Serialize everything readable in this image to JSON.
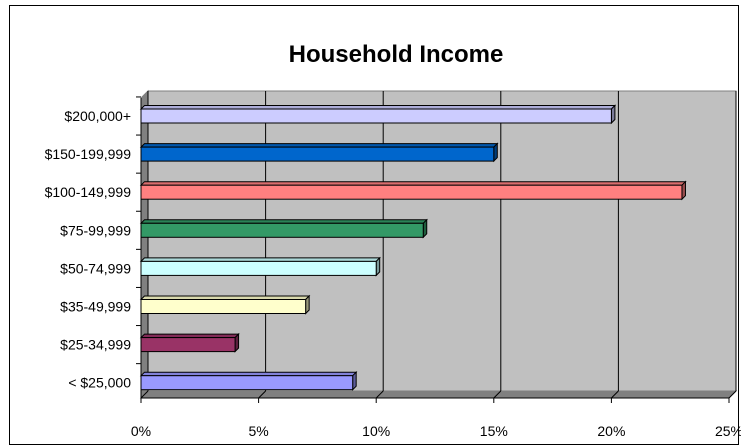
{
  "chart_data": {
    "type": "bar",
    "orientation": "horizontal",
    "title": "Household Income",
    "categories": [
      "$200,000+",
      "$150-199,999",
      "$100-149,999",
      "$75-99,999",
      "$50-74,999",
      "$35-49,999",
      "$25-34,999",
      "< $25,000"
    ],
    "values": [
      20,
      15,
      23,
      12,
      10,
      7,
      4,
      9
    ],
    "bar_colors": [
      "#ccccff",
      "#0066cc",
      "#ff8080",
      "#339966",
      "#ccffff",
      "#ffffcc",
      "#993366",
      "#9999ff"
    ],
    "xlim": [
      0,
      25
    ],
    "xticks": [
      "0%",
      "5%",
      "10%",
      "15%",
      "20%",
      "25%"
    ],
    "grid": true,
    "legend": "none",
    "style": "3d"
  }
}
